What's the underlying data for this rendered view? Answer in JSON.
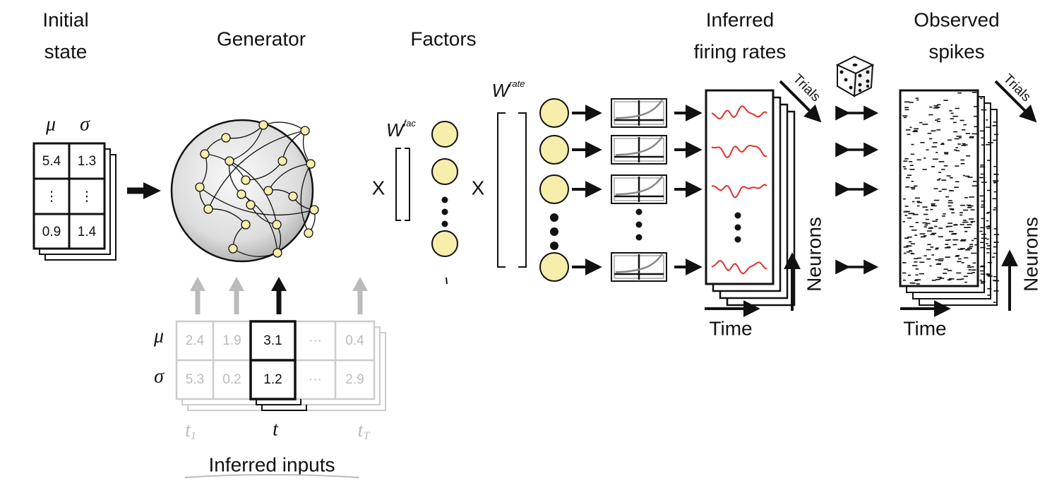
{
  "initial_state": {
    "title": [
      "Initial",
      "state"
    ],
    "columns": [
      "μ",
      "σ"
    ],
    "rows": [
      [
        5.4,
        1.3
      ],
      [
        "⋮",
        "⋮"
      ],
      [
        0.9,
        1.4
      ]
    ]
  },
  "generator": {
    "title": "Generator"
  },
  "factors": {
    "title": "Factors",
    "weight": {
      "symbol": "W",
      "superscript": "fac"
    },
    "operator": "X"
  },
  "rates": {
    "weight": {
      "symbol": "W",
      "superscript": "rate"
    },
    "operator": "X"
  },
  "inferred_firing_rates": {
    "title": [
      "Inferred",
      "firing rates"
    ],
    "trials": "Trials",
    "neurons": "Neurons",
    "time": "Time"
  },
  "observed_spikes": {
    "title": [
      "Observed",
      "spikes"
    ],
    "trials": "Trials",
    "neurons": "Neurons",
    "time": "Time"
  },
  "inferred_inputs": {
    "title": "Inferred inputs",
    "row_labels": [
      "μ",
      "σ"
    ],
    "rows": [
      [
        2.4,
        1.9,
        3.1,
        "···",
        0.4
      ],
      [
        5.3,
        0.2,
        1.2,
        "···",
        2.9
      ]
    ],
    "time_labels": [
      {
        "symbol": "t",
        "subscript": "1"
      },
      {
        "symbol": "t"
      },
      {
        "symbol": "t",
        "subscript": "T"
      }
    ]
  }
}
